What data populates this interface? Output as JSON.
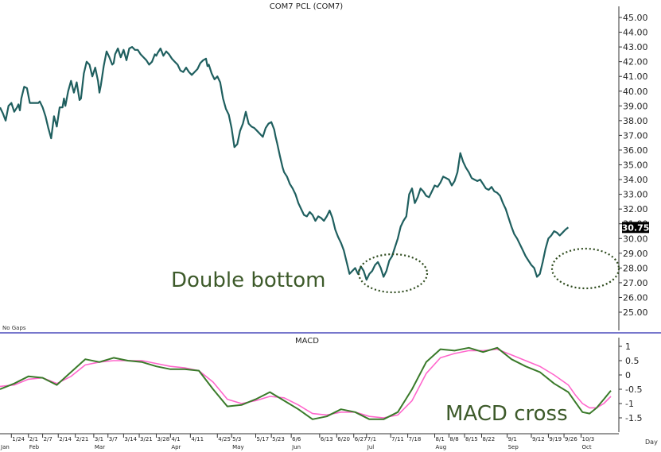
{
  "chart_data": [
    {
      "type": "line",
      "title": "COM7 PCL (COM7)",
      "y_axis_side": "right",
      "ylim": [
        24,
        45.5
      ],
      "yticks": [
        "45.00",
        "44.00",
        "43.00",
        "42.00",
        "41.00",
        "40.00",
        "39.00",
        "38.00",
        "37.00",
        "36.00",
        "35.00",
        "34.00",
        "33.00",
        "32.00",
        "31.00",
        "30.00",
        "29.00",
        "28.00",
        "27.00",
        "26.00",
        "25.00"
      ],
      "last_value_label": "30.75",
      "footer_note": "No Gaps",
      "annotations": [
        {
          "text": "Double bottom"
        }
      ],
      "series": [
        {
          "color": "#1f5f5f",
          "x": [
            0,
            2,
            4,
            6,
            8,
            10,
            12,
            13,
            14,
            15,
            17,
            19,
            21,
            23,
            25,
            27,
            28,
            30,
            32,
            34,
            36,
            38,
            40,
            42,
            44,
            45,
            46,
            48,
            50,
            52,
            54,
            56,
            57,
            59,
            61,
            63,
            65,
            67,
            69,
            70,
            71,
            73,
            75,
            77,
            79,
            80,
            81,
            83,
            85,
            87,
            89,
            91,
            93,
            95,
            97,
            99,
            101,
            103,
            105,
            107,
            109,
            110,
            111,
            113,
            115,
            117,
            119,
            121,
            123,
            125,
            127,
            129,
            131,
            133,
            135,
            137,
            139,
            141,
            143,
            145,
            146,
            147,
            149,
            151,
            153,
            155,
            157,
            159,
            161,
            163,
            165,
            167,
            169,
            171,
            173,
            175,
            177,
            179,
            181,
            183,
            185,
            187,
            189,
            191,
            193,
            194,
            195,
            197,
            199
          ],
          "values": [
            38.9,
            38.5,
            38.0,
            39.0,
            39.2,
            38.6,
            38.9,
            39.1,
            38.7,
            39.5,
            40.3,
            40.2,
            39.2,
            39.2,
            39.2,
            39.2,
            39.3,
            38.9,
            38.3,
            37.5,
            36.8,
            38.3,
            37.6,
            38.9,
            38.9,
            39.5,
            39.0,
            40.0,
            40.7,
            39.9,
            40.6,
            39.4,
            39.5,
            41.2,
            42.0,
            41.8,
            41.0,
            41.6,
            40.7,
            39.9,
            40.4,
            41.7,
            42.7,
            42.3,
            41.8,
            41.9,
            42.5,
            42.9,
            42.3,
            42.8,
            42.1,
            42.9,
            43.0,
            42.8,
            42.8,
            42.5,
            42.3,
            42.1,
            41.8,
            42.0,
            42.5,
            42.4,
            42.6,
            42.9,
            42.4,
            42.7,
            42.5,
            42.2,
            42.0,
            41.8,
            41.4,
            41.3,
            41.6,
            41.3,
            41.1,
            41.3,
            41.5,
            41.9,
            42.1,
            42.2,
            41.7,
            41.8,
            41.2,
            40.8,
            41.0,
            40.6,
            39.5,
            38.8,
            38.4,
            37.5,
            36.2,
            36.4,
            37.3,
            37.8,
            38.6,
            37.8,
            37.6,
            37.5,
            37.3,
            37.1,
            36.9,
            37.5,
            37.8,
            37.9,
            37.4,
            36.9,
            36.5,
            35.6,
            34.8
          ],
          "x2": [
            200,
            202,
            204,
            206,
            208,
            210,
            212,
            214,
            216,
            218,
            220,
            222,
            224,
            226,
            228,
            230,
            232,
            234,
            236,
            238,
            240,
            242,
            244,
            246,
            248,
            250,
            252,
            254,
            256,
            258,
            260,
            262,
            264,
            266,
            268,
            270,
            272,
            274,
            276,
            278,
            280,
            282,
            284,
            286,
            288,
            290,
            292,
            294,
            296,
            298,
            300,
            302,
            304,
            306,
            308,
            310,
            312,
            314,
            316,
            318,
            320,
            322,
            324,
            326,
            328,
            330,
            332,
            334,
            336,
            338,
            340,
            342,
            344,
            346,
            348,
            350,
            352,
            354,
            356,
            358,
            360,
            362,
            364,
            366,
            368,
            370,
            372,
            374,
            376,
            378,
            380,
            382,
            384,
            386,
            388,
            390,
            392,
            394,
            396,
            398,
            400
          ],
          "values2": [
            34.5,
            34.2,
            33.7,
            33.4,
            33.0,
            32.4,
            32.0,
            31.6,
            31.5,
            31.8,
            31.6,
            31.2,
            31.5,
            31.4,
            31.2,
            31.5,
            31.9,
            31.4,
            30.6,
            30.1,
            29.7,
            29.2,
            28.4,
            27.6,
            27.8,
            28.0,
            27.6,
            28.1,
            27.8,
            27.2,
            27.6,
            27.8,
            28.2,
            28.4,
            28.0,
            27.4,
            27.8,
            28.5,
            28.8,
            29.4,
            30.0,
            30.8,
            31.2,
            31.5,
            33.0,
            33.4,
            32.4,
            32.8,
            33.4,
            33.2,
            32.9,
            32.8,
            33.2,
            33.6,
            33.5,
            33.8,
            34.2,
            34.1,
            34.0,
            33.6,
            33.9,
            34.5,
            35.8,
            35.2,
            34.8,
            34.5,
            34.1,
            34.0,
            33.9,
            34.0,
            33.7,
            33.4,
            33.3,
            33.5,
            33.2,
            33.1,
            32.9,
            32.4,
            32.0,
            31.4,
            30.8,
            30.3,
            30.0,
            29.6,
            29.2,
            28.8,
            28.5,
            28.2,
            28.0,
            27.4,
            27.6,
            28.4,
            29.3,
            30.0,
            30.2,
            30.5,
            30.4,
            30.2,
            30.4,
            30.6,
            30.75
          ]
        }
      ]
    },
    {
      "type": "line",
      "title": "MACD",
      "y_axis_side": "right",
      "ylim": [
        -1.9,
        1.25
      ],
      "yticks": [
        "1",
        "0.5",
        "0",
        "-0.5",
        "-1",
        "-1.5"
      ],
      "annotations": [
        {
          "text": "MACD cross"
        }
      ],
      "series": [
        {
          "color": "#3a7a2a",
          "x": [
            0,
            10,
            20,
            30,
            40,
            50,
            60,
            70,
            80,
            90,
            100,
            110,
            120,
            130,
            140,
            150,
            160,
            170,
            180,
            190,
            200,
            210,
            220,
            230,
            240,
            250,
            260,
            270,
            280,
            290,
            300,
            310,
            320,
            330,
            340,
            350,
            360,
            370,
            380,
            390,
            400
          ],
          "values": [
            -0.5,
            -0.3,
            -0.05,
            -0.1,
            -0.35,
            0.1,
            0.55,
            0.45,
            0.6,
            0.5,
            0.45,
            0.3,
            0.2,
            0.2,
            0.15,
            -0.5,
            -1.1,
            -1.05,
            -0.85,
            -0.6,
            -0.9,
            -1.2,
            -1.55,
            -1.45,
            -1.2,
            -1.3,
            -1.55,
            -1.55,
            -1.3,
            -0.5,
            0.45,
            0.9,
            0.85,
            0.95,
            0.8,
            0.95,
            0.55,
            0.3,
            0.1,
            -0.3,
            -0.6
          ],
          "x_tail": [
            405,
            410,
            415,
            420,
            425,
            430
          ],
          "values_tail": [
            -0.95,
            -1.3,
            -1.35,
            -1.15,
            -0.85,
            -0.55
          ]
        },
        {
          "color": "#ff66cc",
          "x": [
            0,
            10,
            20,
            30,
            40,
            50,
            60,
            70,
            80,
            90,
            100,
            110,
            120,
            130,
            140,
            150,
            160,
            170,
            180,
            190,
            200,
            210,
            220,
            230,
            240,
            250,
            260,
            270,
            280,
            290,
            300,
            310,
            320,
            330,
            340,
            350,
            360,
            370,
            380,
            390,
            400
          ],
          "values": [
            -0.4,
            -0.35,
            -0.15,
            -0.1,
            -0.3,
            -0.05,
            0.35,
            0.45,
            0.5,
            0.5,
            0.5,
            0.4,
            0.3,
            0.25,
            0.15,
            -0.25,
            -0.85,
            -1.0,
            -0.9,
            -0.75,
            -0.8,
            -1.05,
            -1.35,
            -1.4,
            -1.3,
            -1.3,
            -1.45,
            -1.5,
            -1.4,
            -0.9,
            0.05,
            0.6,
            0.75,
            0.85,
            0.85,
            0.9,
            0.7,
            0.5,
            0.3,
            0.0,
            -0.35
          ],
          "x_tail": [
            405,
            410,
            415,
            420,
            425,
            430
          ],
          "values_tail": [
            -0.7,
            -1.0,
            -1.15,
            -1.15,
            -1.0,
            -0.75
          ]
        }
      ]
    }
  ],
  "x_axis": {
    "day_label": "Day",
    "date_ticks": [
      {
        "label": "1/24",
        "x": 8
      },
      {
        "label": "2/1",
        "x": 20
      },
      {
        "label": "2/7",
        "x": 30
      },
      {
        "label": "2/14",
        "x": 41
      },
      {
        "label": "2/21",
        "x": 53
      },
      {
        "label": "3/1",
        "x": 66
      },
      {
        "label": "3/7",
        "x": 76
      },
      {
        "label": "3/14",
        "x": 87
      },
      {
        "label": "3/21",
        "x": 98
      },
      {
        "label": "3/28",
        "x": 110
      },
      {
        "label": "4/1",
        "x": 120
      },
      {
        "label": "4/11",
        "x": 134
      },
      {
        "label": "4/25",
        "x": 153
      },
      {
        "label": "5/3",
        "x": 163
      },
      {
        "label": "5/17",
        "x": 180
      },
      {
        "label": "5/23",
        "x": 191
      },
      {
        "label": "6/6",
        "x": 205
      },
      {
        "label": "6/13",
        "x": 225
      },
      {
        "label": "6/20",
        "x": 237
      },
      {
        "label": "6/27",
        "x": 249
      },
      {
        "label": "7/1",
        "x": 258
      },
      {
        "label": "7/11",
        "x": 275
      },
      {
        "label": "7/18",
        "x": 287
      },
      {
        "label": "8/1",
        "x": 306
      },
      {
        "label": "8/8",
        "x": 316
      },
      {
        "label": "8/15",
        "x": 327
      },
      {
        "label": "8/22",
        "x": 339
      },
      {
        "label": "9/1",
        "x": 357
      },
      {
        "label": "9/12",
        "x": 374
      },
      {
        "label": "9/19",
        "x": 386
      },
      {
        "label": "9/26",
        "x": 397
      },
      {
        "label": "10/3",
        "x": 409
      }
    ],
    "month_ticks": [
      {
        "label": "Jan",
        "x": 0
      },
      {
        "label": "Feb",
        "x": 20
      },
      {
        "label": "Mar",
        "x": 66
      },
      {
        "label": "Apr",
        "x": 120
      },
      {
        "label": "May",
        "x": 163
      },
      {
        "label": "Jun",
        "x": 205
      },
      {
        "label": "Jul",
        "x": 258
      },
      {
        "label": "Aug",
        "x": 306
      },
      {
        "label": "Sep",
        "x": 357
      },
      {
        "label": "Oct",
        "x": 409
      }
    ]
  },
  "colors": {
    "price_line": "#1f5f5f",
    "macd_line": "#3a7a2a",
    "signal_line": "#ff66cc",
    "annotation_text": "#3d5a2a",
    "divider": "#7777cc"
  }
}
